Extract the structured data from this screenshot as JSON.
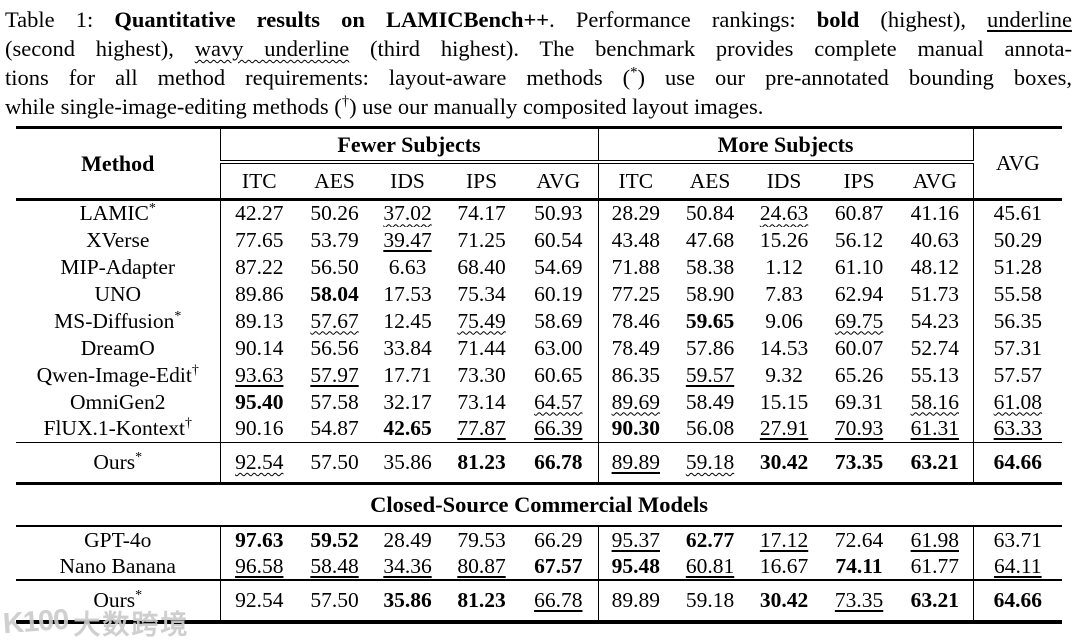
{
  "caption": {
    "lines": [
      [
        {
          "t": "Table 1: ",
          "s": ""
        },
        {
          "t": "Quantitative results on LAMICBench++",
          "s": "b"
        },
        {
          "t": ". Performance rankings: ",
          "s": ""
        },
        {
          "t": "bold",
          "s": "b"
        },
        {
          "t": " (highest), ",
          "s": ""
        },
        {
          "t": "underline",
          "s": "u"
        }
      ],
      [
        {
          "t": "(second highest), ",
          "s": ""
        },
        {
          "t": "wavy underline",
          "s": "w"
        },
        {
          "t": " (third highest). The benchmark provides complete manual annota-",
          "s": ""
        }
      ],
      [
        {
          "t": "tions for all method requirements: layout-aware methods (",
          "s": ""
        },
        {
          "t": "*",
          "s": "sup"
        },
        {
          "t": ") use our pre-annotated bounding boxes,",
          "s": ""
        }
      ],
      [
        {
          "t": "while single-image-editing methods (",
          "s": ""
        },
        {
          "t": "†",
          "s": "sup"
        },
        {
          "t": ") use our manually composited layout images.",
          "s": ""
        }
      ]
    ]
  },
  "table": {
    "method_header": "Method",
    "group_headers": [
      "Fewer Subjects",
      "More Subjects"
    ],
    "avg_header": "AVG",
    "sub_headers": [
      "ITC",
      "AES",
      "IDS",
      "IPS",
      "AVG"
    ],
    "section_header": "Closed-Source Commercial Models",
    "open_rows": [
      {
        "name": "LAMIC",
        "sup": "*",
        "cells": [
          [
            "42.27",
            ""
          ],
          [
            "50.26",
            ""
          ],
          [
            "37.02",
            "w"
          ],
          [
            "74.17",
            ""
          ],
          [
            "50.93",
            ""
          ],
          [
            "28.29",
            ""
          ],
          [
            "50.84",
            ""
          ],
          [
            "24.63",
            "w"
          ],
          [
            "60.87",
            ""
          ],
          [
            "41.16",
            ""
          ],
          [
            "45.61",
            ""
          ]
        ]
      },
      {
        "name": "XVerse",
        "sup": "",
        "cells": [
          [
            "77.65",
            ""
          ],
          [
            "53.79",
            ""
          ],
          [
            "39.47",
            "u"
          ],
          [
            "71.25",
            ""
          ],
          [
            "60.54",
            ""
          ],
          [
            "43.48",
            ""
          ],
          [
            "47.68",
            ""
          ],
          [
            "15.26",
            ""
          ],
          [
            "56.12",
            ""
          ],
          [
            "40.63",
            ""
          ],
          [
            "50.29",
            ""
          ]
        ]
      },
      {
        "name": "MIP-Adapter",
        "sup": "",
        "cells": [
          [
            "87.22",
            ""
          ],
          [
            "56.50",
            ""
          ],
          [
            "6.63",
            ""
          ],
          [
            "68.40",
            ""
          ],
          [
            "54.69",
            ""
          ],
          [
            "71.88",
            ""
          ],
          [
            "58.38",
            ""
          ],
          [
            "1.12",
            ""
          ],
          [
            "61.10",
            ""
          ],
          [
            "48.12",
            ""
          ],
          [
            "51.28",
            ""
          ]
        ]
      },
      {
        "name": "UNO",
        "sup": "",
        "cells": [
          [
            "89.86",
            ""
          ],
          [
            "58.04",
            "b"
          ],
          [
            "17.53",
            ""
          ],
          [
            "75.34",
            ""
          ],
          [
            "60.19",
            ""
          ],
          [
            "77.25",
            ""
          ],
          [
            "58.90",
            ""
          ],
          [
            "7.83",
            ""
          ],
          [
            "62.94",
            ""
          ],
          [
            "51.73",
            ""
          ],
          [
            "55.58",
            ""
          ]
        ]
      },
      {
        "name": "MS-Diffusion",
        "sup": "*",
        "cells": [
          [
            "89.13",
            ""
          ],
          [
            "57.67",
            "w"
          ],
          [
            "12.45",
            ""
          ],
          [
            "75.49",
            "w"
          ],
          [
            "58.69",
            ""
          ],
          [
            "78.46",
            ""
          ],
          [
            "59.65",
            "b"
          ],
          [
            "9.06",
            ""
          ],
          [
            "69.75",
            "w"
          ],
          [
            "54.23",
            ""
          ],
          [
            "56.35",
            ""
          ]
        ]
      },
      {
        "name": "DreamO",
        "sup": "",
        "cells": [
          [
            "90.14",
            ""
          ],
          [
            "56.56",
            ""
          ],
          [
            "33.84",
            ""
          ],
          [
            "71.44",
            ""
          ],
          [
            "63.00",
            ""
          ],
          [
            "78.49",
            ""
          ],
          [
            "57.86",
            ""
          ],
          [
            "14.53",
            ""
          ],
          [
            "60.07",
            ""
          ],
          [
            "52.74",
            ""
          ],
          [
            "57.31",
            ""
          ]
        ]
      },
      {
        "name": "Qwen-Image-Edit",
        "sup": "†",
        "cells": [
          [
            "93.63",
            "u"
          ],
          [
            "57.97",
            "u"
          ],
          [
            "17.71",
            ""
          ],
          [
            "73.30",
            ""
          ],
          [
            "60.65",
            ""
          ],
          [
            "86.35",
            ""
          ],
          [
            "59.57",
            "u"
          ],
          [
            "9.32",
            ""
          ],
          [
            "65.26",
            ""
          ],
          [
            "55.13",
            ""
          ],
          [
            "57.57",
            ""
          ]
        ]
      },
      {
        "name": "OmniGen2",
        "sup": "",
        "cells": [
          [
            "95.40",
            "b"
          ],
          [
            "57.58",
            ""
          ],
          [
            "32.17",
            ""
          ],
          [
            "73.14",
            ""
          ],
          [
            "64.57",
            "w"
          ],
          [
            "89.69",
            "w"
          ],
          [
            "58.49",
            ""
          ],
          [
            "15.15",
            ""
          ],
          [
            "69.31",
            ""
          ],
          [
            "58.16",
            "w"
          ],
          [
            "61.08",
            "w"
          ]
        ]
      },
      {
        "name": "FlUX.1-Kontext",
        "sup": "†",
        "cells": [
          [
            "90.16",
            ""
          ],
          [
            "54.87",
            ""
          ],
          [
            "42.65",
            "b"
          ],
          [
            "77.87",
            "u"
          ],
          [
            "66.39",
            "u"
          ],
          [
            "90.30",
            "b"
          ],
          [
            "56.08",
            ""
          ],
          [
            "27.91",
            "u"
          ],
          [
            "70.93",
            "u"
          ],
          [
            "61.31",
            "u"
          ],
          [
            "63.33",
            "u"
          ]
        ]
      }
    ],
    "ours_open": {
      "name": "Ours",
      "sup": "*",
      "cells": [
        [
          "92.54",
          "w"
        ],
        [
          "57.50",
          ""
        ],
        [
          "35.86",
          ""
        ],
        [
          "81.23",
          "b"
        ],
        [
          "66.78",
          "b"
        ],
        [
          "89.89",
          "u"
        ],
        [
          "59.18",
          "w"
        ],
        [
          "30.42",
          "b"
        ],
        [
          "73.35",
          "b"
        ],
        [
          "63.21",
          "b"
        ],
        [
          "64.66",
          "b"
        ]
      ]
    },
    "closed_rows": [
      {
        "name": "GPT-4o",
        "sup": "",
        "cells": [
          [
            "97.63",
            "b"
          ],
          [
            "59.52",
            "b"
          ],
          [
            "28.49",
            ""
          ],
          [
            "79.53",
            ""
          ],
          [
            "66.29",
            ""
          ],
          [
            "95.37",
            "u"
          ],
          [
            "62.77",
            "b"
          ],
          [
            "17.12",
            "u"
          ],
          [
            "72.64",
            ""
          ],
          [
            "61.98",
            "u"
          ],
          [
            "63.71",
            ""
          ]
        ]
      },
      {
        "name": "Nano Banana",
        "sup": "",
        "cells": [
          [
            "96.58",
            "u"
          ],
          [
            "58.48",
            "u"
          ],
          [
            "34.36",
            "u"
          ],
          [
            "80.87",
            "u"
          ],
          [
            "67.57",
            "b"
          ],
          [
            "95.48",
            "b"
          ],
          [
            "60.81",
            "u"
          ],
          [
            "16.67",
            ""
          ],
          [
            "74.11",
            "b"
          ],
          [
            "61.77",
            ""
          ],
          [
            "64.11",
            "u"
          ]
        ]
      }
    ],
    "ours_closed": {
      "name": "Ours",
      "sup": "*",
      "cells": [
        [
          "92.54",
          ""
        ],
        [
          "57.50",
          ""
        ],
        [
          "35.86",
          "b"
        ],
        [
          "81.23",
          "b"
        ],
        [
          "66.78",
          "u"
        ],
        [
          "89.89",
          ""
        ],
        [
          "59.18",
          ""
        ],
        [
          "30.42",
          "b"
        ],
        [
          "73.35",
          "u"
        ],
        [
          "63.21",
          "b"
        ],
        [
          "64.66",
          "b"
        ]
      ]
    }
  },
  "watermark": {
    "logo": "K100",
    "text": "大数跨境"
  }
}
